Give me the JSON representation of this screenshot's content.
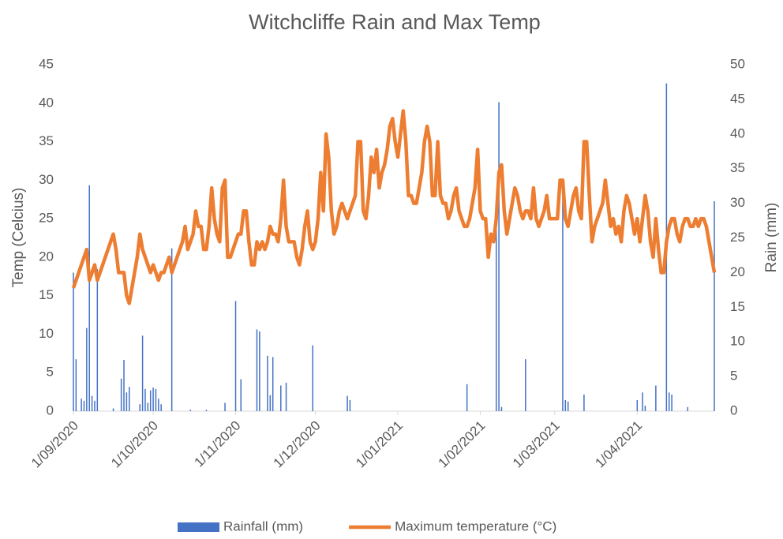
{
  "chart_data": {
    "type": "bar-line",
    "title": "Witchcliffe Rain and Max Temp",
    "y_label": "Temp (Celcius)",
    "y2_label": "Rain (mm)",
    "x": [
      "2020-09-01",
      "2020-09-02",
      "2020-09-03",
      "2020-09-04",
      "2020-09-05",
      "2020-09-06",
      "2020-09-07",
      "2020-09-08",
      "2020-09-09",
      "2020-09-10",
      "2020-09-11",
      "2020-09-12",
      "2020-09-13",
      "2020-09-14",
      "2020-09-15",
      "2020-09-16",
      "2020-09-17",
      "2020-09-18",
      "2020-09-19",
      "2020-09-20",
      "2020-09-21",
      "2020-09-22",
      "2020-09-23",
      "2020-09-24",
      "2020-09-25",
      "2020-09-26",
      "2020-09-27",
      "2020-09-28",
      "2020-09-29",
      "2020-09-30",
      "2020-10-01",
      "2020-10-02",
      "2020-10-03",
      "2020-10-04",
      "2020-10-05",
      "2020-10-06",
      "2020-10-07",
      "2020-10-08",
      "2020-10-09",
      "2020-10-10",
      "2020-10-11",
      "2020-10-12",
      "2020-10-13",
      "2020-10-14",
      "2020-10-15",
      "2020-10-16",
      "2020-10-17",
      "2020-10-18",
      "2020-10-19",
      "2020-10-20",
      "2020-10-21",
      "2020-10-22",
      "2020-10-23",
      "2020-10-24",
      "2020-10-25",
      "2020-10-26",
      "2020-10-27",
      "2020-10-28",
      "2020-10-29",
      "2020-10-30",
      "2020-10-31",
      "2020-11-01",
      "2020-11-02",
      "2020-11-03",
      "2020-11-04",
      "2020-11-05",
      "2020-11-06",
      "2020-11-07",
      "2020-11-08",
      "2020-11-09",
      "2020-11-10",
      "2020-11-11",
      "2020-11-12",
      "2020-11-13",
      "2020-11-14",
      "2020-11-15",
      "2020-11-16",
      "2020-11-17",
      "2020-11-18",
      "2020-11-19",
      "2020-11-20",
      "2020-11-21",
      "2020-11-22",
      "2020-11-23",
      "2020-11-24",
      "2020-11-25",
      "2020-11-26",
      "2020-11-27",
      "2020-11-28",
      "2020-11-29",
      "2020-11-30",
      "2020-12-01",
      "2020-12-02",
      "2020-12-03",
      "2020-12-04",
      "2020-12-05",
      "2020-12-06",
      "2020-12-07",
      "2020-12-08",
      "2020-12-09",
      "2020-12-10",
      "2020-12-11",
      "2020-12-12",
      "2020-12-13",
      "2020-12-14",
      "2020-12-15",
      "2020-12-16",
      "2020-12-17",
      "2020-12-18",
      "2020-12-19",
      "2020-12-20",
      "2020-12-21",
      "2020-12-22",
      "2020-12-23",
      "2020-12-24",
      "2020-12-25",
      "2020-12-26",
      "2020-12-27",
      "2020-12-28",
      "2020-12-29",
      "2020-12-30",
      "2020-12-31",
      "2021-01-01",
      "2021-01-02",
      "2021-01-03",
      "2021-01-04",
      "2021-01-05",
      "2021-01-06",
      "2021-01-07",
      "2021-01-08",
      "2021-01-09",
      "2021-01-10",
      "2021-01-11",
      "2021-01-12",
      "2021-01-13",
      "2021-01-14",
      "2021-01-15",
      "2021-01-16",
      "2021-01-17",
      "2021-01-18",
      "2021-01-19",
      "2021-01-20",
      "2021-01-21",
      "2021-01-22",
      "2021-01-23",
      "2021-01-24",
      "2021-01-25",
      "2021-01-26",
      "2021-01-27",
      "2021-01-28",
      "2021-01-29",
      "2021-01-30",
      "2021-01-31",
      "2021-02-01",
      "2021-02-02",
      "2021-02-03",
      "2021-02-04",
      "2021-02-05",
      "2021-02-06",
      "2021-02-07",
      "2021-02-08",
      "2021-02-09",
      "2021-02-10",
      "2021-02-11",
      "2021-02-12",
      "2021-02-13",
      "2021-02-14",
      "2021-02-15",
      "2021-02-16",
      "2021-02-17",
      "2021-02-18",
      "2021-02-19",
      "2021-02-20",
      "2021-02-21",
      "2021-02-22",
      "2021-02-23",
      "2021-02-24",
      "2021-02-25",
      "2021-02-26",
      "2021-02-27",
      "2021-02-28",
      "2021-03-01",
      "2021-03-02",
      "2021-03-03",
      "2021-03-04",
      "2021-03-05",
      "2021-03-06",
      "2021-03-07",
      "2021-03-08",
      "2021-03-09",
      "2021-03-10",
      "2021-03-11",
      "2021-03-12",
      "2021-03-13",
      "2021-03-14",
      "2021-03-15",
      "2021-03-16",
      "2021-03-17",
      "2021-03-18",
      "2021-03-19",
      "2021-03-20",
      "2021-03-21",
      "2021-03-22",
      "2021-03-23",
      "2021-03-24",
      "2021-03-25",
      "2021-03-26",
      "2021-03-27",
      "2021-03-28",
      "2021-03-29",
      "2021-03-30",
      "2021-03-31",
      "2021-04-01",
      "2021-04-02",
      "2021-04-03",
      "2021-04-04",
      "2021-04-05",
      "2021-04-06",
      "2021-04-07",
      "2021-04-08",
      "2021-04-09",
      "2021-04-10",
      "2021-04-11",
      "2021-04-12",
      "2021-04-13",
      "2021-04-14",
      "2021-04-15",
      "2021-04-16",
      "2021-04-17",
      "2021-04-18",
      "2021-04-19",
      "2021-04-20",
      "2021-04-21",
      "2021-04-22",
      "2021-04-23",
      "2021-04-24",
      "2021-04-25",
      "2021-04-26",
      "2021-04-27",
      "2021-04-28",
      "2021-04-29",
      "2021-04-30"
    ],
    "series": [
      {
        "name": "Rainfall (mm)",
        "type": "bar",
        "axis": "y2",
        "color": "#4472c4",
        "values": [
          20,
          7.5,
          0,
          1.8,
          1.5,
          12,
          32.6,
          2.2,
          1.5,
          20.5,
          0,
          0,
          0,
          0,
          0,
          0.4,
          0,
          0,
          4.7,
          7.4,
          2.7,
          3.5,
          0,
          0,
          0,
          1,
          10.9,
          3.2,
          1.2,
          3,
          3.4,
          3.2,
          1.8,
          1,
          0,
          0,
          0,
          23.5,
          0,
          0,
          0,
          0,
          0,
          0,
          0.2,
          0,
          0,
          0,
          0,
          0,
          0.2,
          0,
          0,
          0,
          0,
          0,
          0,
          1.2,
          0,
          0,
          0,
          15.9,
          0,
          4.6,
          0,
          0,
          0,
          0,
          0,
          11.8,
          11.5,
          0,
          0,
          8,
          2.3,
          7.8,
          0,
          0,
          3.7,
          0,
          4.1,
          0,
          0,
          0,
          0,
          0,
          0,
          0,
          0,
          0,
          9.5,
          0,
          0,
          0,
          0,
          0,
          0,
          0,
          0,
          0,
          0,
          0,
          0,
          2.2,
          1.6,
          0,
          0,
          0,
          0,
          0,
          0,
          0,
          0,
          0,
          0,
          0,
          0,
          0,
          0,
          0,
          0,
          0,
          0,
          0,
          0,
          0,
          0,
          0,
          0,
          0,
          0,
          0,
          0,
          0,
          0,
          0,
          0,
          0,
          0,
          0,
          0,
          0,
          0,
          0,
          0,
          0,
          0,
          0,
          3.9,
          0,
          0,
          0,
          0,
          0,
          0,
          0,
          0,
          0,
          0,
          27,
          44.6,
          0.6,
          0,
          0,
          0,
          0,
          0,
          0,
          0,
          0,
          7.5,
          0,
          0,
          0,
          0,
          0,
          0,
          0,
          0,
          0,
          0,
          0,
          0,
          0,
          32.5,
          1.6,
          1.4,
          0,
          0,
          0,
          0,
          0,
          2.4,
          0,
          0,
          0,
          0,
          0,
          0,
          0,
          0,
          0,
          0,
          0,
          0,
          0,
          0,
          0,
          0,
          0,
          0,
          0,
          1.6,
          0,
          2.7,
          0.8,
          0,
          0,
          0,
          3.7,
          0,
          0,
          0,
          47.3,
          2.7,
          2.4,
          0,
          0,
          0,
          0,
          0,
          0.6,
          0,
          0,
          0,
          0,
          0,
          0,
          0,
          0,
          0,
          30.3
        ]
      },
      {
        "name": "Maximum temperature (°C)",
        "type": "line",
        "axis": "y",
        "color": "#ed7d31",
        "values": [
          16,
          17,
          18,
          19,
          20,
          21,
          17,
          18,
          19,
          17,
          18,
          19,
          20,
          21,
          22,
          23,
          21,
          18,
          18,
          18,
          15,
          14,
          16,
          18,
          20,
          23,
          21,
          20,
          19,
          18,
          19,
          18,
          17,
          18,
          18,
          19,
          20,
          18,
          19,
          20,
          21,
          22,
          24,
          21,
          22,
          23,
          26,
          24,
          24,
          21,
          21,
          24,
          29,
          25,
          23,
          22,
          29,
          30,
          20,
          20,
          21,
          22,
          23,
          23,
          26,
          26,
          22,
          19,
          19,
          22,
          21,
          22,
          21,
          22,
          24,
          23,
          23,
          22,
          25,
          30,
          24,
          22,
          22,
          22,
          20,
          19,
          21,
          24,
          26,
          22,
          21,
          22,
          25,
          31,
          26,
          36,
          33,
          26,
          23,
          24,
          26,
          27,
          26,
          25,
          26,
          27,
          28,
          35,
          35,
          26,
          25,
          28,
          33,
          31,
          34,
          29,
          31,
          32,
          34,
          37,
          38,
          35,
          33,
          36,
          39,
          35,
          28,
          28,
          27,
          27,
          29,
          31,
          35,
          37,
          35,
          28,
          28,
          35,
          28,
          27,
          27,
          25,
          26,
          28,
          29,
          26,
          25,
          24,
          24,
          25,
          27,
          29,
          34,
          26,
          25,
          25,
          20,
          23,
          22,
          25,
          31,
          32,
          26,
          23,
          25,
          27,
          29,
          28,
          26,
          25,
          26,
          26,
          25,
          29,
          25,
          24,
          25,
          26,
          28,
          25,
          25,
          25,
          25,
          30,
          30,
          25,
          24,
          26,
          28,
          29,
          26,
          25,
          35,
          35,
          28,
          22,
          24,
          25,
          26,
          27,
          30,
          27,
          24,
          25,
          23,
          24,
          22,
          26,
          28,
          27,
          25,
          23,
          25,
          22,
          25,
          28,
          26,
          22,
          20,
          25,
          21,
          18,
          18,
          22,
          24,
          25,
          25,
          23,
          22,
          24,
          25,
          25,
          24,
          24,
          25,
          24,
          25,
          25,
          24,
          22,
          20,
          18
        ]
      }
    ],
    "xlim": [
      "2020-09-01",
      "2021-04-30"
    ],
    "xticks": [
      {
        "value": "2020-09-01",
        "label": "1/09/2020"
      },
      {
        "value": "2020-10-01",
        "label": "1/10/2020"
      },
      {
        "value": "2020-11-01",
        "label": "1/11/2020"
      },
      {
        "value": "2020-12-01",
        "label": "1/12/2020"
      },
      {
        "value": "2021-01-01",
        "label": "1/01/2021"
      },
      {
        "value": "2021-02-01",
        "label": "1/02/2021"
      },
      {
        "value": "2021-03-01",
        "label": "1/03/2021"
      },
      {
        "value": "2021-04-01",
        "label": "1/04/2021"
      }
    ],
    "ylim": [
      0,
      45
    ],
    "yticks": [
      0,
      5,
      10,
      15,
      20,
      25,
      30,
      35,
      40,
      45
    ],
    "y2lim": [
      0,
      50
    ],
    "y2ticks": [
      0,
      5,
      10,
      15,
      20,
      25,
      30,
      35,
      40,
      45,
      50
    ],
    "grid": false,
    "legend": "bottom"
  }
}
